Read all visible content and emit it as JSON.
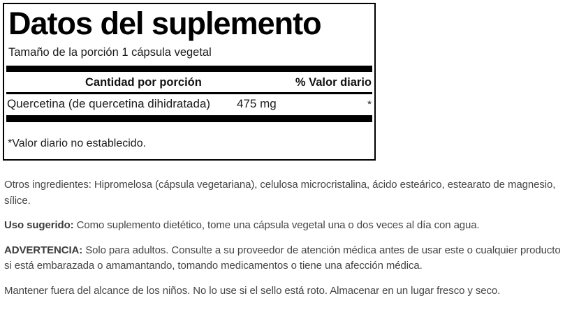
{
  "panel": {
    "title": "Datos del suplemento",
    "serving_size": "Tamaño de la porción 1 cápsula vegetal",
    "columns": {
      "amount": "Cantidad por porción",
      "daily_value": "% Valor diario"
    },
    "ingredients": [
      {
        "name": "Quercetina (de quercetina dihidratada)",
        "amount": "475 mg",
        "daily_value": "*"
      }
    ],
    "footnote": "*Valor diario no establecido."
  },
  "info": {
    "other_ingredients_label": "Otros ingredientes:",
    "other_ingredients": "Hipromelosa (cápsula vegetariana), celulosa microcristalina, ácido esteárico, estearato de magnesio, sílice.",
    "suggested_use_label": "Uso sugerido:",
    "suggested_use": "Como suplemento dietético, tome una cápsula vegetal una o dos veces al día con agua.",
    "warning_label": "ADVERTENCIA:",
    "warning": "Solo para adultos. Consulte a su proveedor de atención médica antes de usar este o cualquier producto si está embarazada o amamantando, tomando medicamentos o tiene una afección médica.",
    "storage": "Mantener fuera del alcance de los niños. No lo use si el sello está roto. Almacenar en un lugar fresco y seco."
  },
  "colors": {
    "bar": "#000000",
    "panel_border": "#000000",
    "panel_text": "#151515",
    "body_text": "#454545",
    "background": "#ffffff"
  }
}
